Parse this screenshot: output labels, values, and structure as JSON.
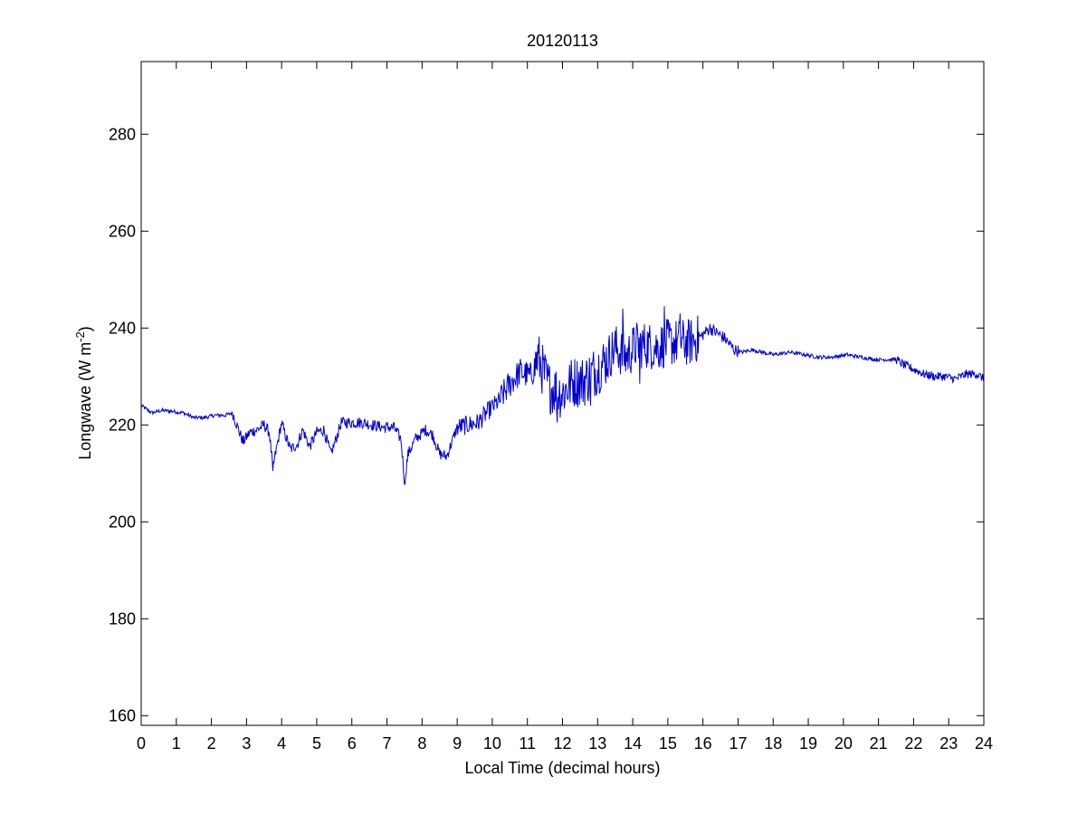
{
  "chart_data": {
    "type": "line",
    "title": "20120113",
    "xlabel": "Local Time (decimal hours)",
    "ylabel": "Longwave (W m",
    "ylabel_superscript": "-2",
    "ylabel_suffix": ")",
    "xlim": [
      0,
      24
    ],
    "ylim": [
      158,
      295
    ],
    "xticks": [
      0,
      1,
      2,
      3,
      4,
      5,
      6,
      7,
      8,
      9,
      10,
      11,
      12,
      13,
      14,
      15,
      16,
      17,
      18,
      19,
      20,
      21,
      22,
      23,
      24
    ],
    "yticks": [
      160,
      180,
      200,
      220,
      240,
      260,
      280
    ],
    "grid": false,
    "legend": "none",
    "series": [
      {
        "color": "#0000cc",
        "anchors": [
          [
            0.0,
            224
          ],
          [
            0.3,
            222.5
          ],
          [
            0.6,
            223
          ],
          [
            0.9,
            222.8
          ],
          [
            1.2,
            222.5
          ],
          [
            1.5,
            221.5
          ],
          [
            1.8,
            221.5
          ],
          [
            2.1,
            222
          ],
          [
            2.4,
            222
          ],
          [
            2.6,
            222.5
          ],
          [
            2.75,
            219.5
          ],
          [
            2.9,
            216.5
          ],
          [
            3.1,
            218.5
          ],
          [
            3.3,
            219
          ],
          [
            3.5,
            220
          ],
          [
            3.65,
            218.5
          ],
          [
            3.75,
            211
          ],
          [
            3.85,
            215
          ],
          [
            4.0,
            220.5
          ],
          [
            4.1,
            218
          ],
          [
            4.25,
            215
          ],
          [
            4.45,
            216
          ],
          [
            4.6,
            219
          ],
          [
            4.8,
            215.5
          ],
          [
            5.0,
            218.5
          ],
          [
            5.2,
            219
          ],
          [
            5.4,
            214
          ],
          [
            5.5,
            216
          ],
          [
            5.7,
            220.5
          ],
          [
            6.0,
            220.5
          ],
          [
            6.3,
            220.5
          ],
          [
            6.6,
            220
          ],
          [
            6.9,
            219.5
          ],
          [
            7.2,
            219.5
          ],
          [
            7.4,
            217
          ],
          [
            7.5,
            208.5
          ],
          [
            7.6,
            214
          ],
          [
            7.8,
            217
          ],
          [
            8.1,
            219
          ],
          [
            8.3,
            218
          ],
          [
            8.5,
            214
          ],
          [
            8.7,
            213.5
          ],
          [
            9.0,
            219.5
          ],
          [
            9.3,
            220
          ],
          [
            9.6,
            220.5
          ],
          [
            9.9,
            223
          ],
          [
            10.2,
            225
          ],
          [
            10.5,
            228.5
          ],
          [
            10.8,
            231
          ],
          [
            11.1,
            230
          ],
          [
            11.3,
            234
          ],
          [
            11.6,
            228
          ],
          [
            12.0,
            226.5
          ],
          [
            12.3,
            229
          ],
          [
            12.6,
            229
          ],
          [
            12.9,
            231
          ],
          [
            13.2,
            233
          ],
          [
            13.5,
            236
          ],
          [
            13.8,
            234
          ],
          [
            14.1,
            236.5
          ],
          [
            14.4,
            236.5
          ],
          [
            14.7,
            236
          ],
          [
            15.0,
            237
          ],
          [
            15.3,
            237
          ],
          [
            15.6,
            237
          ],
          [
            15.9,
            238
          ],
          [
            16.2,
            240
          ],
          [
            16.6,
            238
          ],
          [
            16.9,
            235.5
          ],
          [
            17.1,
            235
          ],
          [
            17.4,
            235.5
          ],
          [
            17.7,
            235
          ],
          [
            18.0,
            234.5
          ],
          [
            18.5,
            235
          ],
          [
            18.9,
            234.5
          ],
          [
            19.3,
            234
          ],
          [
            19.7,
            234
          ],
          [
            20.1,
            234.5
          ],
          [
            20.5,
            234
          ],
          [
            20.9,
            233.5
          ],
          [
            21.3,
            233.5
          ],
          [
            21.5,
            233.5
          ],
          [
            21.7,
            232.5
          ],
          [
            22.0,
            231.5
          ],
          [
            22.3,
            230.5
          ],
          [
            22.6,
            230
          ],
          [
            22.9,
            230
          ],
          [
            23.2,
            229.5
          ],
          [
            23.5,
            230.5
          ],
          [
            23.8,
            230.5
          ],
          [
            24.0,
            229.5
          ]
        ],
        "noise_bands": [
          [
            0,
            2.6,
            0.4
          ],
          [
            2.6,
            9,
            1.2
          ],
          [
            9,
            10.2,
            2.0
          ],
          [
            10.2,
            11.2,
            3.0
          ],
          [
            11.2,
            13.3,
            5.5
          ],
          [
            13.3,
            15.9,
            5.0
          ],
          [
            15.9,
            17,
            1.3
          ],
          [
            17,
            21.5,
            0.4
          ],
          [
            21.5,
            24,
            0.9
          ]
        ],
        "spikes": [
          [
            3.75,
            210.5
          ],
          [
            7.52,
            208
          ],
          [
            13.72,
            244
          ],
          [
            14.9,
            244.5
          ],
          [
            15.35,
            243
          ],
          [
            14.2,
            228.5
          ],
          [
            11.85,
            220.5
          ],
          [
            12.8,
            224
          ]
        ]
      }
    ]
  }
}
